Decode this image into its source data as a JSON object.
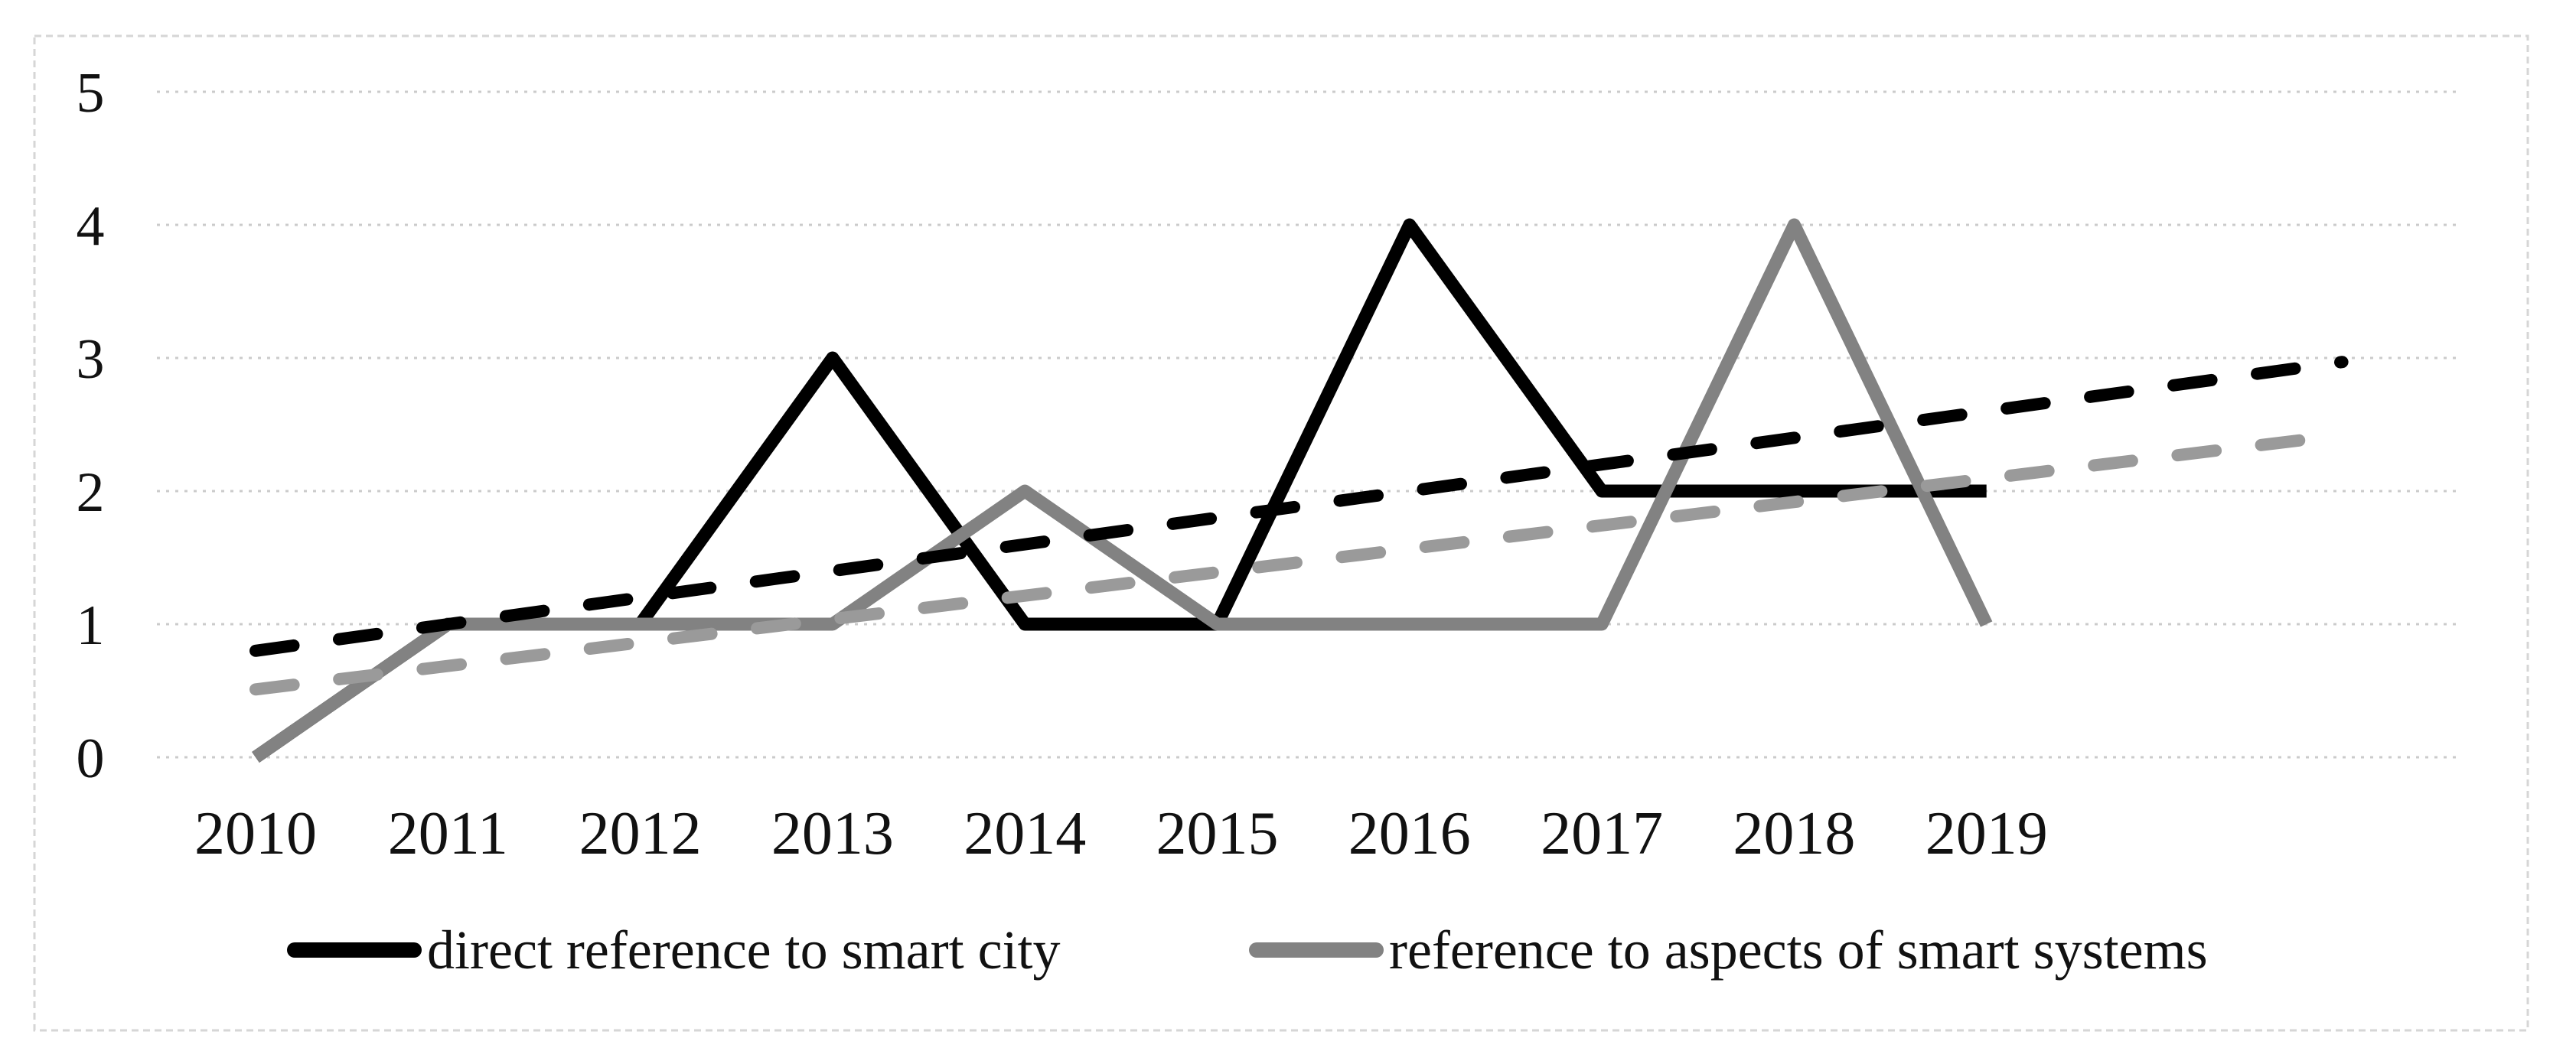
{
  "figure": {
    "background": "#ffffff",
    "border_color": "#d6d6d6",
    "gridline_color": "#cbcbcb",
    "text_color": "#111111"
  },
  "chart_data": {
    "type": "line",
    "title": "",
    "xlabel": "",
    "ylabel": "",
    "categories": [
      "2010",
      "2011",
      "2012",
      "2013",
      "2014",
      "2015",
      "2016",
      "2017",
      "2018",
      "2019"
    ],
    "yticks": [
      "0",
      "1",
      "2",
      "3",
      "4",
      "5"
    ],
    "ylim": [
      0,
      5
    ],
    "grid": true,
    "legend_position": "bottom",
    "series": [
      {
        "name": "direct reference to smart city",
        "color": "#000000",
        "line_style": "solid",
        "values": [
          0,
          1,
          1,
          3,
          1,
          1,
          4,
          2,
          2,
          2
        ]
      },
      {
        "name": "reference to aspects of smart systems",
        "color": "#828282",
        "line_style": "solid",
        "values": [
          0,
          1,
          1,
          1,
          2,
          1,
          1,
          1,
          4,
          1
        ]
      }
    ],
    "trendlines": [
      {
        "series": "direct reference to smart city",
        "color": "#000000",
        "line_style": "dashed",
        "start_year": 2010,
        "start_value": 0.8,
        "end_year": 2020.85,
        "end_value": 2.97
      },
      {
        "series": "reference to aspects of smart systems",
        "color": "#9a9a9a",
        "line_style": "dashed",
        "start_year": 2010,
        "start_value": 0.51,
        "end_year": 2020.85,
        "end_value": 2.42
      }
    ],
    "legend": [
      {
        "label": "direct reference to smart city",
        "color": "#000000"
      },
      {
        "label": "reference to aspects of smart systems",
        "color": "#828282"
      }
    ]
  }
}
